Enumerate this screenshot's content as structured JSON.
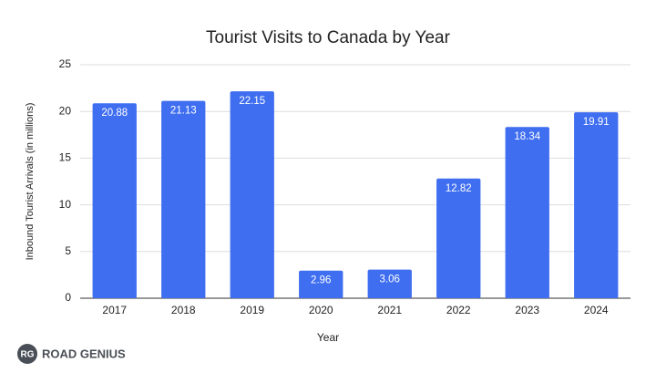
{
  "chart_data": {
    "type": "bar",
    "title": "Tourist Visits to Canada by Year",
    "x_label": "Year",
    "y_label": "Inbound Tourist Arrivals (in millions)",
    "categories": [
      "2017",
      "2018",
      "2019",
      "2020",
      "2021",
      "2022",
      "2023",
      "2024"
    ],
    "values": [
      20.88,
      21.13,
      22.15,
      2.96,
      3.06,
      12.82,
      18.34,
      19.91
    ],
    "color": "#3f6ef0",
    "ylim": [
      0,
      25
    ],
    "yticks": [
      0,
      5,
      10,
      15,
      20,
      25
    ],
    "grid": true
  },
  "logo": {
    "badge": "RG",
    "text": "ROAD GENIUS"
  }
}
